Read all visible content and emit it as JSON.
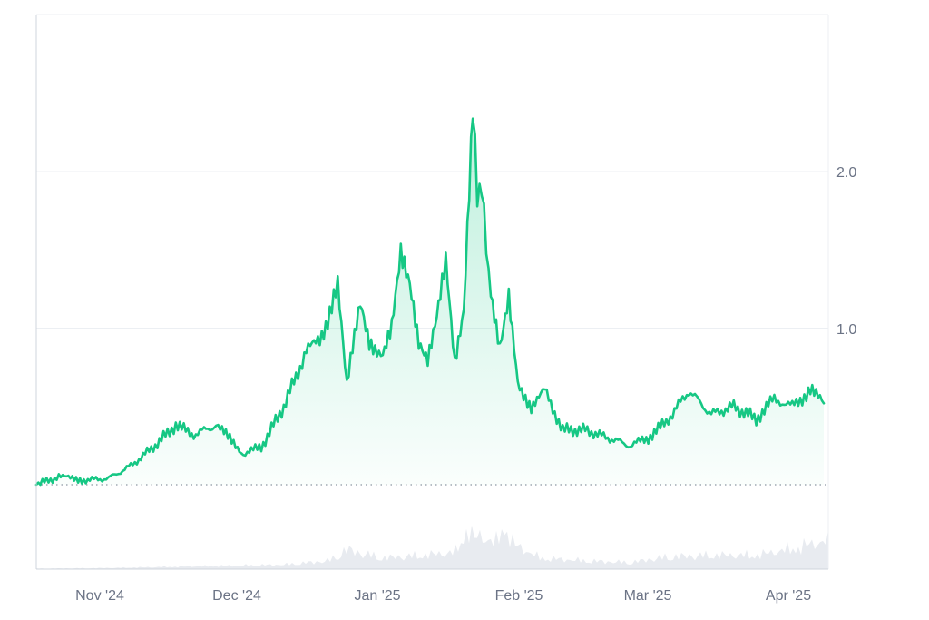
{
  "chart_data": {
    "type": "area",
    "title": "",
    "xlabel": "",
    "ylabel": "",
    "x_tick_labels": [
      "Nov '24",
      "Dec '24",
      "Jan '25",
      "Feb '25",
      "Mar '25",
      "Apr '25"
    ],
    "y_tick_labels": [
      "1.0",
      "2.0"
    ],
    "ylim": [
      0,
      3.0
    ],
    "baseline": 0,
    "grid": true,
    "colors": {
      "line": "#16c784",
      "fill_top": "#16c784",
      "volume": "#e8ebf0",
      "grid": "#eceff3",
      "axis": "#cfd5dd",
      "baseline_dots": "#8e97a4"
    },
    "series": [
      {
        "x": [
          "2024-10-16",
          "2024-10-21",
          "2024-10-27",
          "2024-11-01",
          "2024-11-06",
          "2024-11-11",
          "2024-11-16",
          "2024-11-20",
          "2024-11-25",
          "2024-12-01",
          "2024-12-05",
          "2024-12-10",
          "2024-12-15",
          "2024-12-18",
          "2024-12-22",
          "2024-12-24",
          "2024-12-27",
          "2024-12-29",
          "2025-01-01",
          "2025-01-03",
          "2025-01-05",
          "2025-01-07",
          "2025-01-09",
          "2025-01-11",
          "2025-01-13",
          "2025-01-15",
          "2025-01-17",
          "2025-01-19",
          "2025-01-21",
          "2025-01-22",
          "2025-01-23",
          "2025-01-24",
          "2025-01-25",
          "2025-01-27",
          "2025-01-29",
          "2025-01-31",
          "2025-02-03",
          "2025-02-06",
          "2025-02-10",
          "2025-02-15",
          "2025-02-20",
          "2025-02-25",
          "2025-03-01",
          "2025-03-05",
          "2025-03-10",
          "2025-03-15",
          "2025-03-20",
          "2025-03-25",
          "2025-03-29",
          "2025-04-02",
          "2025-04-06",
          "2025-04-09"
        ],
        "values": [
          0.0,
          0.05,
          0.03,
          0.04,
          0.12,
          0.24,
          0.38,
          0.32,
          0.38,
          0.2,
          0.24,
          0.5,
          0.85,
          0.92,
          1.25,
          0.62,
          1.18,
          0.9,
          0.85,
          1.05,
          1.52,
          1.3,
          0.9,
          0.78,
          1.05,
          1.4,
          0.76,
          1.1,
          2.42,
          1.82,
          1.95,
          1.48,
          1.25,
          0.9,
          1.22,
          0.65,
          0.5,
          0.6,
          0.35,
          0.35,
          0.3,
          0.25,
          0.3,
          0.4,
          0.6,
          0.45,
          0.5,
          0.42,
          0.55,
          0.5,
          0.6,
          0.52
        ]
      }
    ],
    "volume": {
      "x": [
        "2024-10-16",
        "2024-11-01",
        "2024-11-20",
        "2024-12-10",
        "2024-12-20",
        "2024-12-24",
        "2025-01-01",
        "2025-01-10",
        "2025-01-17",
        "2025-01-20",
        "2025-01-21",
        "2025-01-23",
        "2025-01-26",
        "2025-01-28",
        "2025-01-30",
        "2025-02-05",
        "2025-02-15",
        "2025-02-25",
        "2025-03-05",
        "2025-03-15",
        "2025-03-25",
        "2025-04-01",
        "2025-04-09"
      ],
      "values": [
        0.01,
        0.02,
        0.05,
        0.08,
        0.15,
        0.35,
        0.2,
        0.25,
        0.3,
        0.75,
        0.55,
        0.6,
        0.45,
        0.8,
        0.45,
        0.2,
        0.15,
        0.12,
        0.22,
        0.25,
        0.25,
        0.35,
        0.5
      ]
    }
  }
}
